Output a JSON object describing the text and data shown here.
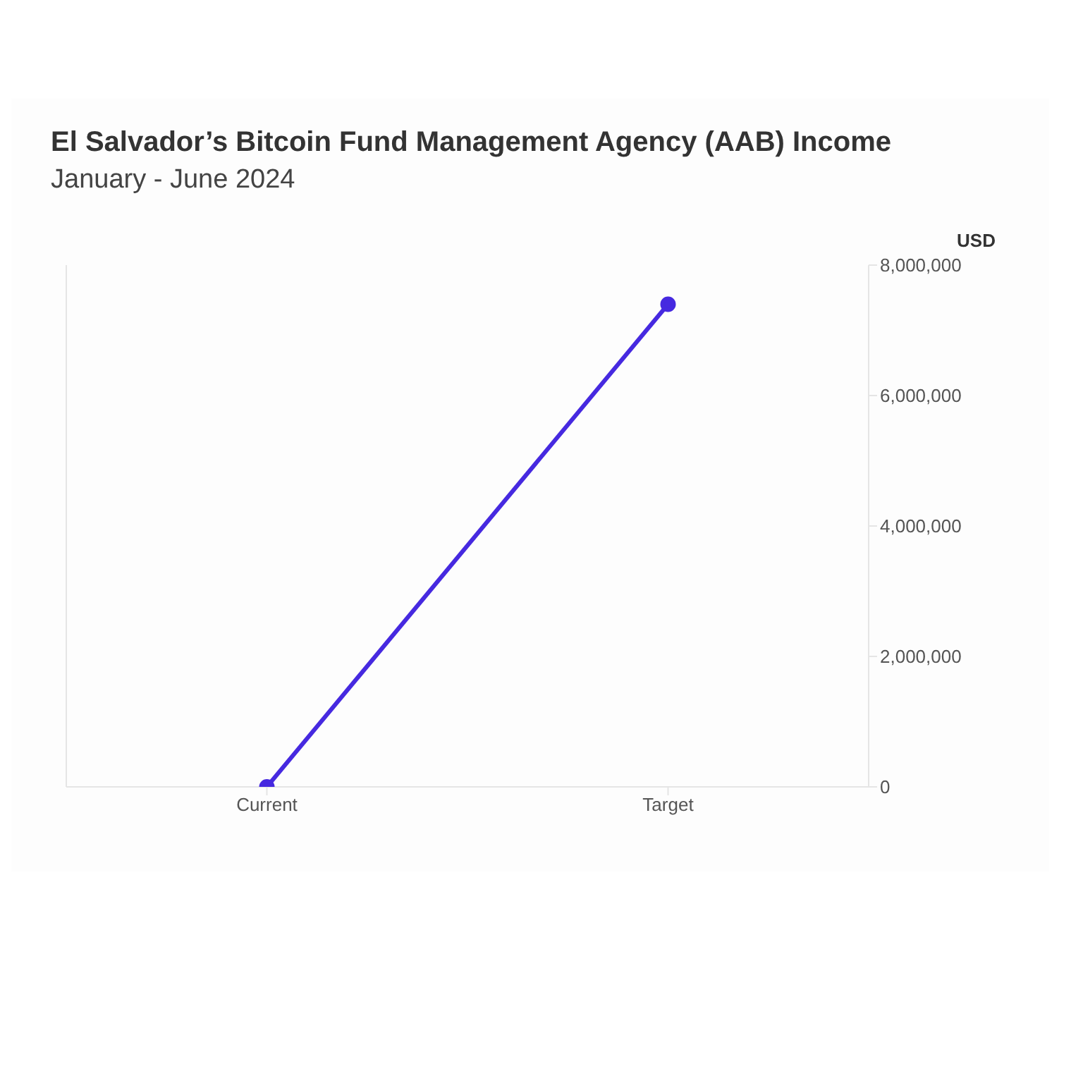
{
  "chart_data": {
    "type": "line",
    "title": "El Salvador’s Bitcoin Fund Management Agency (AAB) Income",
    "subtitle": "January - June 2024",
    "ylabel": "USD",
    "categories": [
      "Current",
      "Target"
    ],
    "series": [
      {
        "color": "#4629e0",
        "values": [
          0,
          7400000
        ]
      }
    ],
    "ylim": [
      0,
      8000000
    ],
    "yticks": [
      0,
      {
        "value": 2000000,
        "label": "2,000,000"
      },
      {
        "value": 4000000,
        "label": "4,000,000"
      },
      {
        "value": 6000000,
        "label": "6,000,000"
      },
      {
        "value": 8000000,
        "label": "8,000,000"
      }
    ],
    "marker": "circle",
    "line_style": "solid"
  }
}
